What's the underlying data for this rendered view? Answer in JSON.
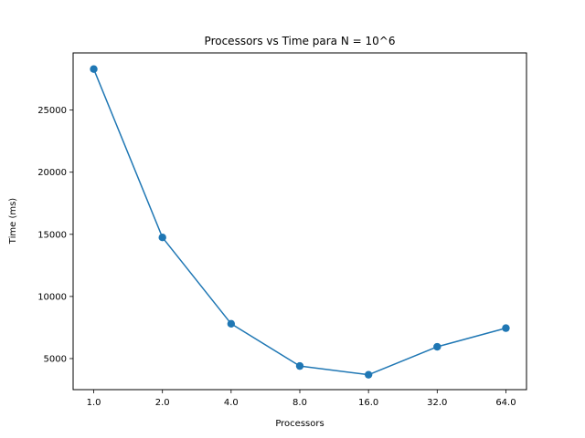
{
  "chart_data": {
    "type": "line",
    "title": "Processors vs Time para N = 10^6",
    "xlabel": "Processors",
    "ylabel": "Time (ms)",
    "x_scale": "log2",
    "categories": [
      "1.0",
      "2.0",
      "4.0",
      "8.0",
      "16.0",
      "32.0",
      "64.0"
    ],
    "x": [
      1,
      2,
      4,
      8,
      16,
      32,
      64
    ],
    "series": [
      {
        "values": [
          28300,
          14750,
          7800,
          4400,
          3700,
          5950,
          7450
        ],
        "color": "#1f77b4",
        "marker": "circle"
      }
    ],
    "yticks": [
      5000,
      10000,
      15000,
      20000,
      25000
    ],
    "ylim": [
      2500,
      29600
    ],
    "grid": false,
    "legend": "none"
  }
}
